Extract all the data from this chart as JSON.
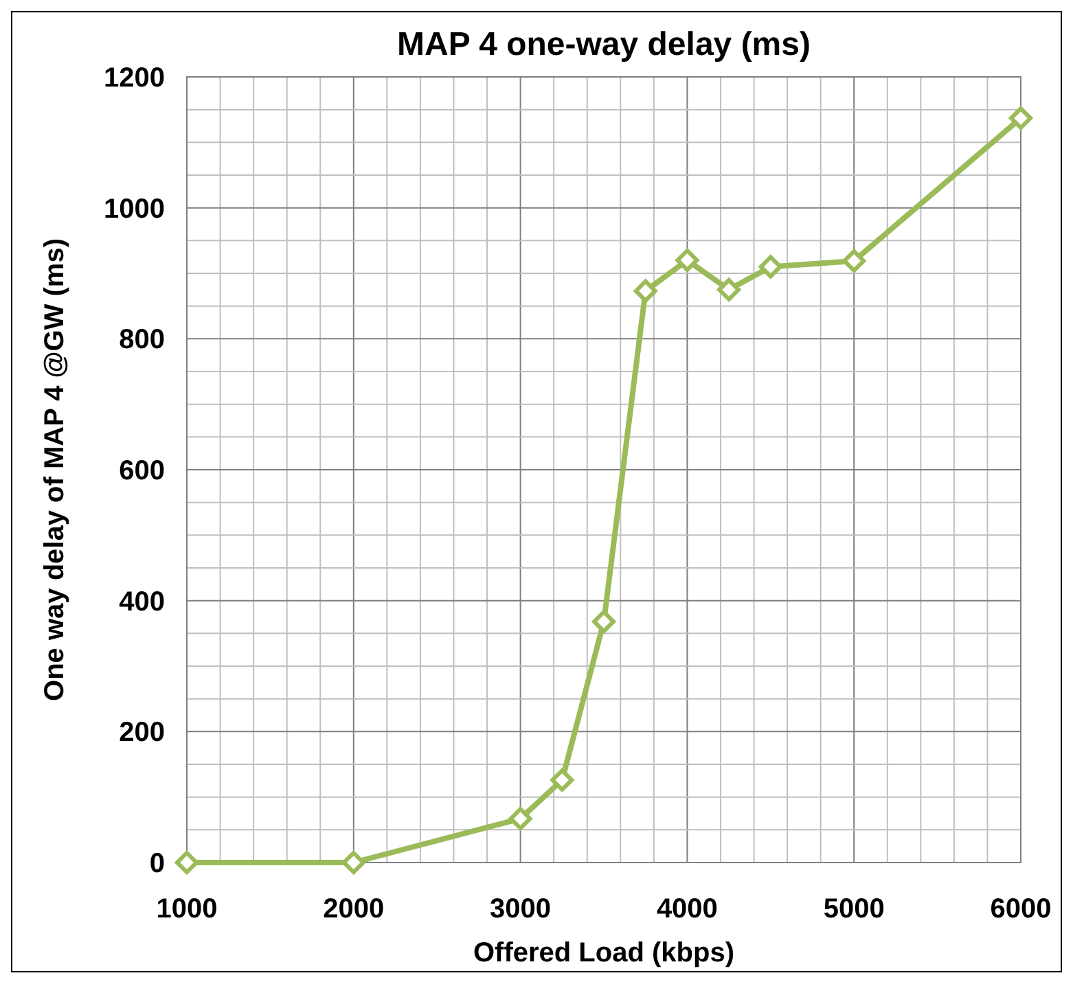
{
  "chart_data": {
    "type": "line",
    "title": "MAP 4 one-way delay (ms)",
    "xlabel": "Offered Load (kbps)",
    "ylabel": "One way delay of MAP 4 @GW (ms)",
    "x": [
      1000,
      2000,
      3000,
      3250,
      3500,
      3750,
      4000,
      4250,
      4500,
      5000,
      6000
    ],
    "series": [
      {
        "color": "#9bbb59",
        "values": [
          0,
          0,
          67,
          126,
          368,
          873,
          920,
          875,
          910,
          919,
          1137
        ]
      }
    ],
    "xlim": [
      1000,
      6000
    ],
    "xticks": [
      1000,
      {
        "value": 1200,
        "label": null
      },
      {
        "value": 1400,
        "label": null
      },
      {
        "value": 1600,
        "label": null
      },
      {
        "value": 1800,
        "label": null
      },
      2000,
      {
        "value": 2200,
        "label": null
      },
      {
        "value": 2400,
        "label": null
      },
      {
        "value": 2600,
        "label": null
      },
      {
        "value": 2800,
        "label": null
      },
      3000,
      {
        "value": 3200,
        "label": null
      },
      {
        "value": 3400,
        "label": null
      },
      {
        "value": 3600,
        "label": null
      },
      {
        "value": 3800,
        "label": null
      },
      4000,
      {
        "value": 4200,
        "label": null
      },
      {
        "value": 4400,
        "label": null
      },
      {
        "value": 4600,
        "label": null
      },
      {
        "value": 4800,
        "label": null
      },
      5000,
      {
        "value": 5200,
        "label": null
      },
      {
        "value": 5400,
        "label": null
      },
      {
        "value": 5600,
        "label": null
      },
      {
        "value": 5800,
        "label": null
      },
      6000
    ],
    "ylim": [
      0,
      1200
    ],
    "yticks": [
      0,
      {
        "value": 50,
        "label": null
      },
      {
        "value": 100,
        "label": null
      },
      {
        "value": 150,
        "label": null
      },
      200,
      {
        "value": 250,
        "label": null
      },
      {
        "value": 300,
        "label": null
      },
      {
        "value": 350,
        "label": null
      },
      400,
      {
        "value": 450,
        "label": null
      },
      {
        "value": 500,
        "label": null
      },
      {
        "value": 550,
        "label": null
      },
      600,
      {
        "value": 650,
        "label": null
      },
      {
        "value": 700,
        "label": null
      },
      {
        "value": 750,
        "label": null
      },
      800,
      {
        "value": 850,
        "label": null
      },
      {
        "value": 900,
        "label": null
      },
      {
        "value": 950,
        "label": null
      },
      1000,
      {
        "value": 1050,
        "label": null
      },
      {
        "value": 1100,
        "label": null
      },
      {
        "value": 1150,
        "label": null
      },
      1200
    ],
    "grid": true,
    "marker": "diamond",
    "line_style": "solid"
  }
}
